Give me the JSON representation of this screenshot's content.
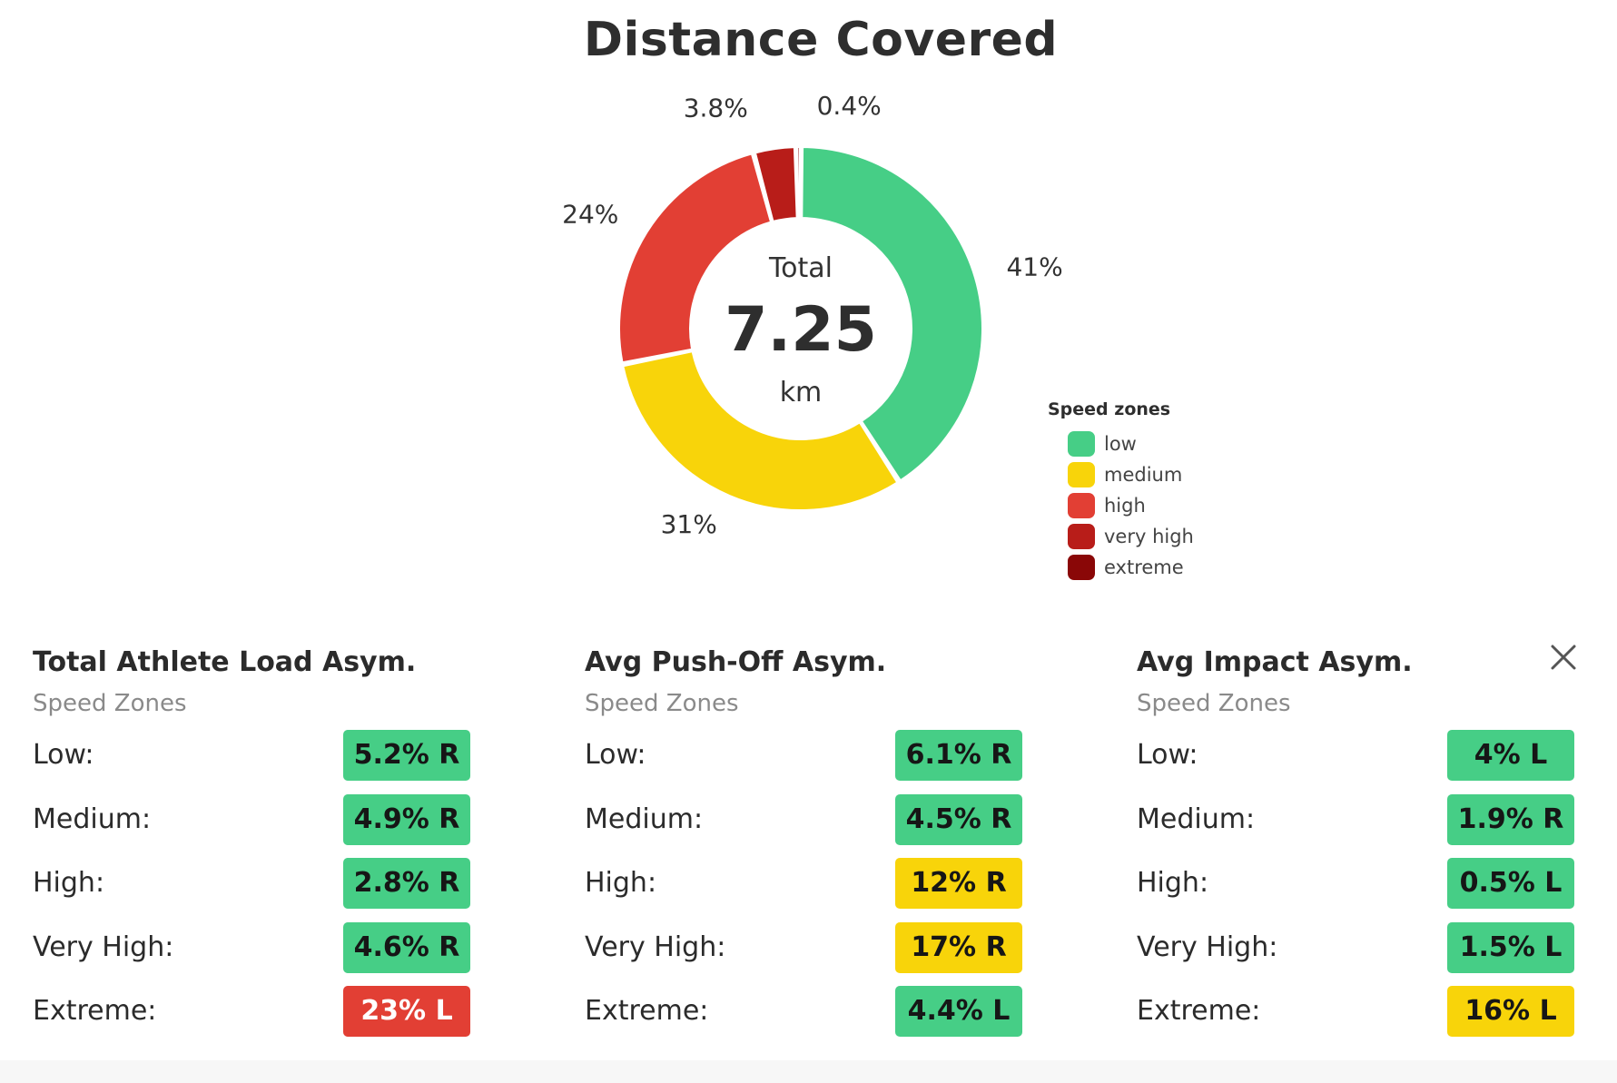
{
  "chart_data": {
    "type": "pie",
    "title": "Distance Covered",
    "categories": [
      "low",
      "medium",
      "high",
      "very high",
      "extreme"
    ],
    "values": [
      41,
      31,
      24,
      3.8,
      0.4
    ],
    "data_labels": [
      "41%",
      "31%",
      "24%",
      "3.8%",
      "0.4%"
    ],
    "colors": [
      "#46ce86",
      "#f8d40a",
      "#e23f34",
      "#b81d19",
      "#8a0707"
    ],
    "center": {
      "label": "Total",
      "value": "7.25",
      "unit": "km"
    },
    "legend": {
      "title": "Speed zones",
      "position": "right"
    }
  },
  "panels": [
    {
      "title": "Total Athlete Load Asym.",
      "subtitle": "Speed Zones",
      "rows": [
        {
          "label": "Low:",
          "value": "5.2% R",
          "color": "#46ce86",
          "text_color": "#161616"
        },
        {
          "label": "Medium:",
          "value": "4.9% R",
          "color": "#46ce86",
          "text_color": "#161616"
        },
        {
          "label": "High:",
          "value": "2.8% R",
          "color": "#46ce86",
          "text_color": "#161616"
        },
        {
          "label": "Very High:",
          "value": "4.6% R",
          "color": "#46ce86",
          "text_color": "#161616"
        },
        {
          "label": "Extreme:",
          "value": "23% L",
          "color": "#e23f34",
          "text_color": "#ffffff"
        }
      ]
    },
    {
      "title": "Avg Push-Off Asym.",
      "subtitle": "Speed Zones",
      "rows": [
        {
          "label": "Low:",
          "value": "6.1% R",
          "color": "#46ce86",
          "text_color": "#161616"
        },
        {
          "label": "Medium:",
          "value": "4.5% R",
          "color": "#46ce86",
          "text_color": "#161616"
        },
        {
          "label": "High:",
          "value": "12% R",
          "color": "#f8d40a",
          "text_color": "#161616"
        },
        {
          "label": "Very High:",
          "value": "17% R",
          "color": "#f8d40a",
          "text_color": "#161616"
        },
        {
          "label": "Extreme:",
          "value": "4.4% L",
          "color": "#46ce86",
          "text_color": "#161616"
        }
      ]
    },
    {
      "title": "Avg Impact Asym.",
      "subtitle": "Speed Zones",
      "rows": [
        {
          "label": "Low:",
          "value": "4% L",
          "color": "#46ce86",
          "text_color": "#161616"
        },
        {
          "label": "Medium:",
          "value": "1.9% R",
          "color": "#46ce86",
          "text_color": "#161616"
        },
        {
          "label": "High:",
          "value": "0.5% L",
          "color": "#46ce86",
          "text_color": "#161616"
        },
        {
          "label": "Very High:",
          "value": "1.5% L",
          "color": "#46ce86",
          "text_color": "#161616"
        },
        {
          "label": "Extreme:",
          "value": "16% L",
          "color": "#f8d40a",
          "text_color": "#161616"
        }
      ]
    }
  ],
  "close_icon": "close-icon"
}
